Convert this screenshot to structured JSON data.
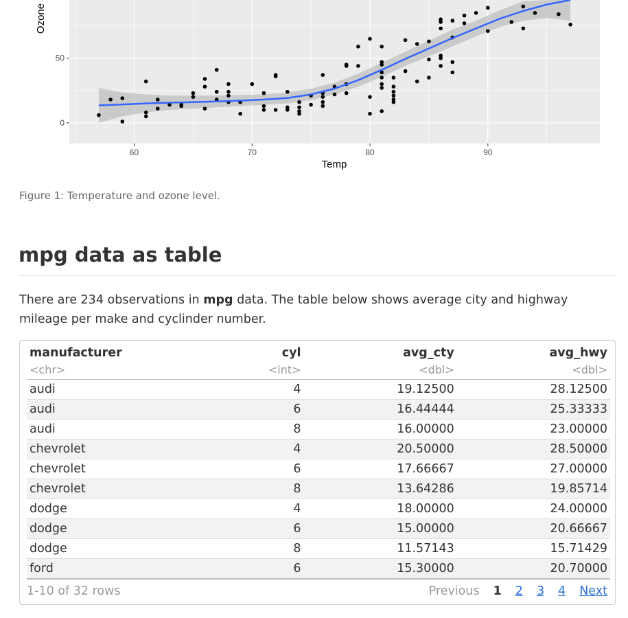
{
  "chart_data": {
    "type": "scatter",
    "xlabel": "Temp",
    "ylabel": "Ozone",
    "xlim": [
      54.5,
      99.5
    ],
    "ylim": [
      -16,
      95
    ],
    "x_ticks": [
      60,
      70,
      80,
      90
    ],
    "y_ticks": [
      0,
      50
    ],
    "grid": true,
    "points": [
      [
        57,
        6
      ],
      [
        58,
        18
      ],
      [
        59,
        19
      ],
      [
        59,
        1
      ],
      [
        61,
        32
      ],
      [
        61,
        8
      ],
      [
        61,
        5
      ],
      [
        62,
        18
      ],
      [
        62,
        11
      ],
      [
        63,
        14
      ],
      [
        64,
        14
      ],
      [
        64,
        13
      ],
      [
        65,
        23
      ],
      [
        65,
        20
      ],
      [
        66,
        34
      ],
      [
        66,
        28
      ],
      [
        66,
        11
      ],
      [
        67,
        41
      ],
      [
        67,
        24
      ],
      [
        67,
        18
      ],
      [
        68,
        30
      ],
      [
        68,
        24
      ],
      [
        68,
        21
      ],
      [
        68,
        16
      ],
      [
        69,
        16
      ],
      [
        69,
        7
      ],
      [
        70,
        30
      ],
      [
        71,
        23
      ],
      [
        71,
        13
      ],
      [
        71,
        10
      ],
      [
        72,
        37
      ],
      [
        72,
        36
      ],
      [
        72,
        10
      ],
      [
        73,
        24
      ],
      [
        73,
        12
      ],
      [
        73,
        10
      ],
      [
        74,
        16
      ],
      [
        74,
        12
      ],
      [
        74,
        9
      ],
      [
        74,
        7
      ],
      [
        75,
        21
      ],
      [
        75,
        14
      ],
      [
        76,
        37
      ],
      [
        76,
        23
      ],
      [
        76,
        20
      ],
      [
        76,
        16
      ],
      [
        76,
        13
      ],
      [
        77,
        28
      ],
      [
        77,
        22
      ],
      [
        78,
        45
      ],
      [
        78,
        44
      ],
      [
        78,
        30
      ],
      [
        78,
        23
      ],
      [
        79,
        59
      ],
      [
        79,
        44
      ],
      [
        80,
        65
      ],
      [
        80,
        20
      ],
      [
        80,
        7
      ],
      [
        81,
        59
      ],
      [
        81,
        47
      ],
      [
        81,
        45
      ],
      [
        81,
        39
      ],
      [
        81,
        35
      ],
      [
        81,
        30
      ],
      [
        81,
        27
      ],
      [
        81,
        9
      ],
      [
        82,
        35
      ],
      [
        82,
        28
      ],
      [
        82,
        24
      ],
      [
        82,
        21
      ],
      [
        82,
        18
      ],
      [
        82,
        16
      ],
      [
        83,
        64
      ],
      [
        83,
        40
      ],
      [
        84,
        61
      ],
      [
        84,
        32
      ],
      [
        85,
        63
      ],
      [
        85,
        49
      ],
      [
        85,
        35
      ],
      [
        86,
        80
      ],
      [
        86,
        78
      ],
      [
        86,
        73
      ],
      [
        86,
        52
      ],
      [
        86,
        50
      ],
      [
        86,
        44
      ],
      [
        87,
        66
      ],
      [
        87,
        79
      ],
      [
        87,
        47
      ],
      [
        87,
        39
      ],
      [
        88,
        83
      ],
      [
        88,
        77
      ],
      [
        89,
        85
      ],
      [
        90,
        89
      ],
      [
        90,
        71
      ],
      [
        92,
        78
      ],
      [
        93,
        90
      ],
      [
        93,
        73
      ],
      [
        94,
        85
      ],
      [
        96,
        84
      ],
      [
        97,
        76
      ]
    ],
    "smooth": {
      "x": [
        57,
        59,
        61,
        63,
        65,
        67,
        69,
        71,
        73,
        75,
        77,
        79,
        81,
        83,
        85,
        87,
        89,
        91,
        93,
        95,
        97
      ],
      "y": [
        13.5,
        14.2,
        15.0,
        15.6,
        16.0,
        16.5,
        17.2,
        18.0,
        19.2,
        22.0,
        26.5,
        33.0,
        41.0,
        49.5,
        57.5,
        65.5,
        73.0,
        80.5,
        86.5,
        91.5,
        95.0
      ],
      "lower": [
        0,
        5,
        8,
        10,
        11,
        12,
        13,
        14,
        15,
        17.5,
        22,
        28,
        35.5,
        44,
        51.5,
        59,
        67,
        74,
        79,
        81,
        79
      ],
      "upper": [
        27,
        23.5,
        22,
        21,
        21,
        21,
        21.5,
        22,
        23.5,
        26.5,
        31,
        38,
        46.5,
        55,
        63.5,
        72,
        79,
        87,
        94,
        101,
        111
      ],
      "color": "#3366ff"
    }
  },
  "caption": "Figure 1: Temperature and ozone level.",
  "section": {
    "title": "mpg data as table",
    "para_before": "There are 234 observations in ",
    "para_bold": "mpg",
    "para_after": " data. The table below shows average city and highway mileage per make and cyclinder number."
  },
  "table": {
    "columns": [
      {
        "name": "manufacturer",
        "type": "<chr>"
      },
      {
        "name": "cyl",
        "type": "<int>"
      },
      {
        "name": "avg_cty",
        "type": "<dbl>"
      },
      {
        "name": "avg_hwy",
        "type": "<dbl>"
      }
    ],
    "rows": [
      [
        "audi",
        "4",
        "19.12500",
        "28.12500"
      ],
      [
        "audi",
        "6",
        "16.44444",
        "25.33333"
      ],
      [
        "audi",
        "8",
        "16.00000",
        "23.00000"
      ],
      [
        "chevrolet",
        "4",
        "20.50000",
        "28.50000"
      ],
      [
        "chevrolet",
        "6",
        "17.66667",
        "27.00000"
      ],
      [
        "chevrolet",
        "8",
        "13.64286",
        "19.85714"
      ],
      [
        "dodge",
        "4",
        "18.00000",
        "24.00000"
      ],
      [
        "dodge",
        "6",
        "15.00000",
        "20.66667"
      ],
      [
        "dodge",
        "8",
        "11.57143",
        "15.71429"
      ],
      [
        "ford",
        "6",
        "15.30000",
        "20.70000"
      ]
    ],
    "rows_info": "1-10 of 32 rows",
    "pager": {
      "previous": "Previous",
      "pages": [
        "1",
        "2",
        "3",
        "4"
      ],
      "current": "1",
      "next": "Next"
    }
  }
}
